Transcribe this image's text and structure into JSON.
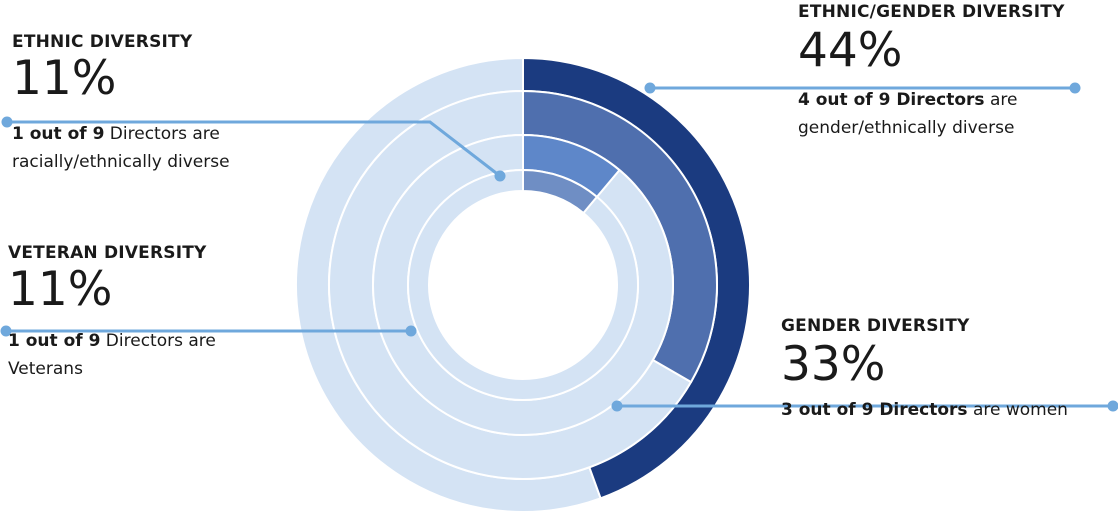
{
  "chart_data": {
    "type": "radial-bar",
    "total_directors": 9,
    "series": [
      {
        "name": "ETHNIC/GENDER DIVERSITY",
        "percent_label": "44%",
        "count": 4,
        "value": 44,
        "description_bold": "4 out of 9 Directors",
        "description_rest": " are gender/ethnically diverse",
        "color": "#1b3b80",
        "track_color": "#d4e3f4"
      },
      {
        "name": "GENDER DIVERSITY",
        "percent_label": "33%",
        "count": 3,
        "value": 33,
        "description_bold": "3 out of 9 Directors",
        "description_rest": " are women",
        "color": "#4f6fae",
        "track_color": "#d4e3f4"
      },
      {
        "name": "ETHNIC DIVERSITY",
        "percent_label": "11%",
        "count": 1,
        "value": 11,
        "description_bold": "1 out of 9",
        "description_rest": " Directors are racially/ethnically diverse",
        "color": "#5e87c9",
        "track_color": "#d4e3f4"
      },
      {
        "name": "VETERAN DIVERSITY",
        "percent_label": "11%",
        "count": 1,
        "value": 11,
        "description_bold": "1 out of 9",
        "description_rest": " Directors are Veterans",
        "color": "#6f8ec4",
        "track_color": "#d4e3f4"
      }
    ],
    "leader_line_color": "#6fa8dc"
  }
}
